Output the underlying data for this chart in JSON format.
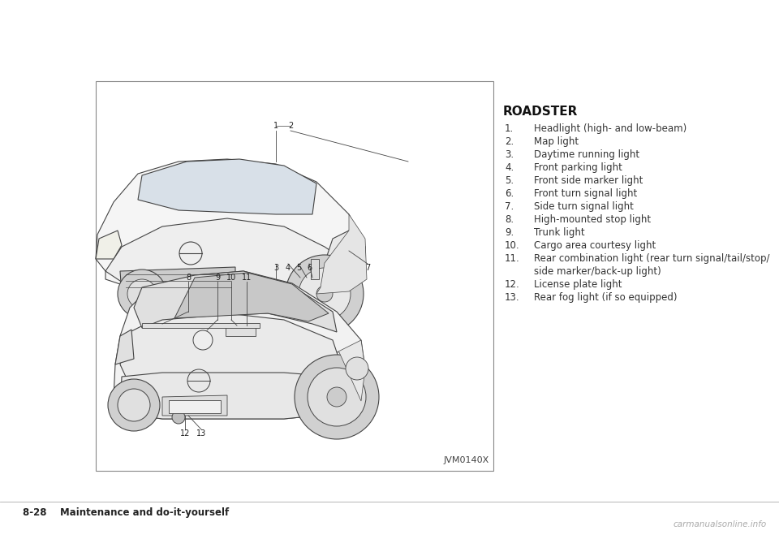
{
  "bg_color": "#ffffff",
  "title": "ROADSTER",
  "items": [
    {
      "num": "1.",
      "text": "Headlight (high- and low-beam)"
    },
    {
      "num": "2.",
      "text": "Map light"
    },
    {
      "num": "3.",
      "text": "Daytime running light"
    },
    {
      "num": "4.",
      "text": "Front parking light"
    },
    {
      "num": "5.",
      "text": "Front side marker light"
    },
    {
      "num": "6.",
      "text": "Front turn signal light"
    },
    {
      "num": "7.",
      "text": "Side turn signal light"
    },
    {
      "num": "8.",
      "text": "High-mounted stop light"
    },
    {
      "num": "9.",
      "text": "Trunk light"
    },
    {
      "num": "10.",
      "text": "Cargo area courtesy light"
    },
    {
      "num": "11.",
      "text": "Rear combination light (rear turn signal/tail/stop/"
    },
    {
      "num": "",
      "text": "side marker/back-up light)"
    },
    {
      "num": "12.",
      "text": "License plate light"
    },
    {
      "num": "13.",
      "text": "Rear fog light (if so equipped)"
    }
  ],
  "footer_left": "8-28    Maintenance and do-it-yourself",
  "footer_right": "carmanualsonline.info",
  "image_label": "JVM0140X",
  "title_fontsize": 11,
  "item_fontsize": 8.5,
  "footer_fontsize": 8.5
}
